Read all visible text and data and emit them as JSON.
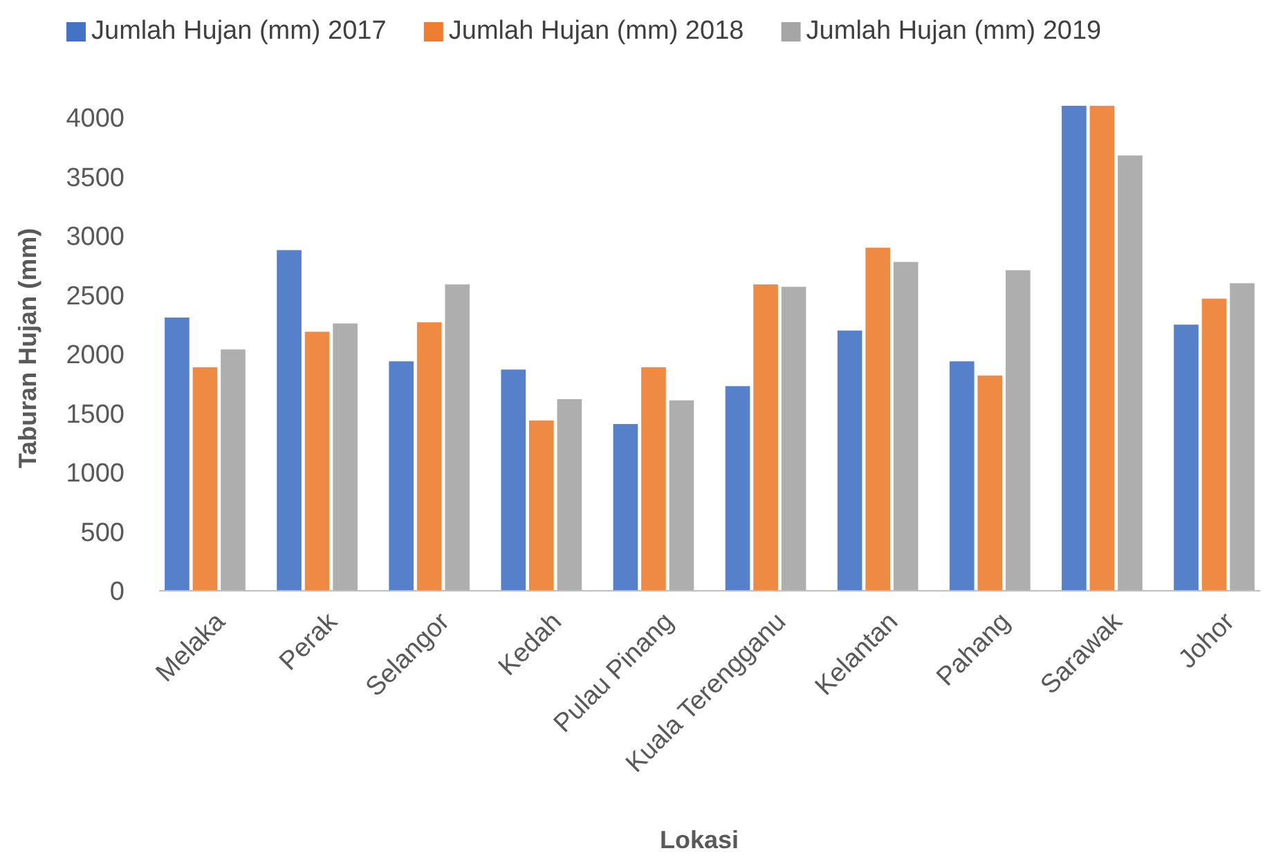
{
  "chart_data": {
    "type": "bar",
    "xlabel": "Lokasi",
    "ylabel": "Taburan Hujan (mm)",
    "categories": [
      "Melaka",
      "Perak",
      "Selangor",
      "Kedah",
      "Pulau Pinang",
      "Kuala Terengganu",
      "Kelantan",
      "Pahang",
      "Sarawak",
      "Johor"
    ],
    "series": [
      {
        "name": "Jumlah Hujan (mm) 2017",
        "color": "#4472c4",
        "values": [
          2310,
          2880,
          1940,
          1870,
          1410,
          1730,
          2200,
          1940,
          4100,
          2250
        ]
      },
      {
        "name": "Jumlah Hujan (mm) 2018",
        "color": "#ed7d31",
        "values": [
          1890,
          2190,
          2270,
          1440,
          1890,
          2590,
          2900,
          1820,
          4100,
          2470
        ]
      },
      {
        "name": "Jumlah Hujan (mm) 2019",
        "color": "#a5a5a5",
        "values": [
          2040,
          2260,
          2590,
          1620,
          1610,
          2570,
          2780,
          2710,
          3680,
          2600
        ]
      }
    ],
    "ylim": [
      0,
      4100
    ],
    "yticks": [
      0,
      500,
      1000,
      1500,
      2000,
      2500,
      3000,
      3500,
      4000
    ],
    "grid": false,
    "legend": "top"
  }
}
